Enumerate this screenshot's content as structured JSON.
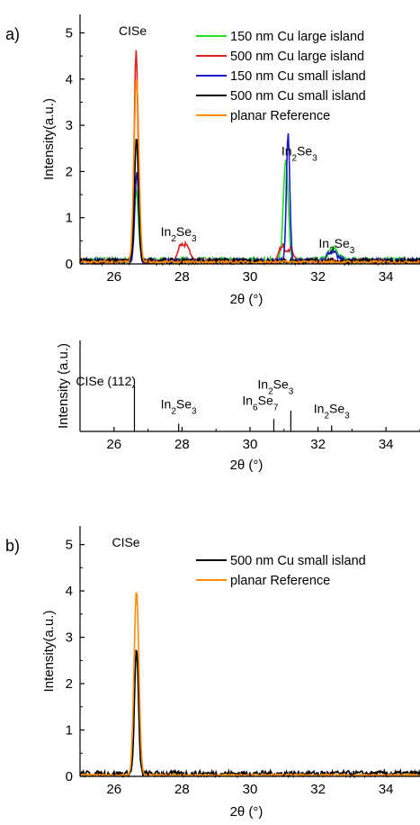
{
  "panels": {
    "a": "a)",
    "b": "b)"
  },
  "chart_data": [
    {
      "id": "a_main",
      "type": "line",
      "xlabel": "2θ (°)",
      "ylabel": "Intensity(a.u.)",
      "xlim": [
        25,
        35
      ],
      "ylim": [
        0,
        5.4
      ],
      "xticks": [
        "26",
        "28",
        "30",
        "32",
        "34"
      ],
      "yticks": [
        "0",
        "1",
        "2",
        "3",
        "4",
        "5"
      ],
      "legend_position": "top-right",
      "annotations": [
        {
          "text": "CISe",
          "x": 26.55,
          "y": 4.95
        },
        {
          "text": "In",
          "sub": "2",
          "text2": "Se",
          "sub2": "3",
          "x": 31.45,
          "y": 2.35
        },
        {
          "text": "In",
          "sub": "2",
          "text2": "Se",
          "sub2": "3",
          "x": 27.9,
          "y": 0.6
        },
        {
          "text": "In",
          "sub": "2",
          "text2": "Se",
          "sub2": "3",
          "x": 32.55,
          "y": 0.35
        }
      ],
      "series": [
        {
          "name": "150 nm Cu large island",
          "color": "#22dd22",
          "peaks": [
            {
              "x": 26.65,
              "h": 1.5,
              "w": 0.09
            },
            {
              "x": 31.05,
              "h": 2.2,
              "w": 0.1
            },
            {
              "x": 32.45,
              "h": 0.25,
              "w": 0.2
            }
          ],
          "baseline": 0.08,
          "noise": 0.06
        },
        {
          "name": "500 nm Cu large island",
          "color": "#e02020",
          "peaks": [
            {
              "x": 26.65,
              "h": 4.55,
              "w": 0.08
            },
            {
              "x": 27.95,
              "h": 0.35,
              "w": 0.12
            },
            {
              "x": 28.15,
              "h": 0.35,
              "w": 0.12
            },
            {
              "x": 30.95,
              "h": 0.35,
              "w": 0.12
            },
            {
              "x": 31.2,
              "h": 0.3,
              "w": 0.1
            }
          ],
          "baseline": 0.06,
          "noise": 0.05
        },
        {
          "name": "150 nm Cu small island",
          "color": "#1a1acc",
          "peaks": [
            {
              "x": 26.67,
              "h": 1.9,
              "w": 0.08
            },
            {
              "x": 31.12,
              "h": 2.75,
              "w": 0.07
            },
            {
              "x": 32.4,
              "h": 0.2,
              "w": 0.2
            }
          ],
          "baseline": 0.07,
          "noise": 0.05
        },
        {
          "name": "500 nm Cu small island",
          "color": "#000000",
          "peaks": [
            {
              "x": 26.66,
              "h": 2.7,
              "w": 0.08
            }
          ],
          "baseline": 0.06,
          "noise": 0.06
        },
        {
          "name": "planar Reference",
          "color": "#ff8c00",
          "peaks": [
            {
              "x": 26.66,
              "h": 4.0,
              "w": 0.1
            }
          ],
          "baseline": 0.04,
          "noise": 0.03
        }
      ]
    },
    {
      "id": "a_reference",
      "type": "bar",
      "xlabel": "2θ (°)",
      "ylabel": "Intensity (a.u.)",
      "xlim": [
        25,
        35
      ],
      "xticks": [
        "26",
        "28",
        "30",
        "32",
        "34"
      ],
      "lines": [
        {
          "x": 26.6,
          "h": 1.0
        },
        {
          "x": 27.9,
          "h": 0.17
        },
        {
          "x": 30.7,
          "h": 0.27
        },
        {
          "x": 31.2,
          "h": 0.45
        },
        {
          "x": 32.4,
          "h": 0.13
        }
      ],
      "annotations": [
        {
          "text": "CISe (112)",
          "x": 26.2,
          "y": 1.0
        },
        {
          "text": "In",
          "sub": "2",
          "text2": "Se",
          "sub2": "3",
          "x": 27.9,
          "y": 0.5
        },
        {
          "text": "In",
          "sub": "6",
          "text2": "Se",
          "sub2": "7",
          "x": 30.3,
          "y": 0.58
        },
        {
          "text": "In",
          "sub": "2",
          "text2": "Se",
          "sub2": "3",
          "x": 30.75,
          "y": 0.93
        },
        {
          "text": "In",
          "sub": "2",
          "text2": "Se",
          "sub2": "3",
          "x": 32.4,
          "y": 0.4
        }
      ]
    },
    {
      "id": "b_main",
      "type": "line",
      "xlabel": "2θ (°)",
      "ylabel": "Intensity(a.u.)",
      "xlim": [
        25,
        35
      ],
      "ylim": [
        0,
        5.4
      ],
      "xticks": [
        "26",
        "28",
        "30",
        "32",
        "34"
      ],
      "yticks": [
        "0",
        "1",
        "2",
        "3",
        "4",
        "5"
      ],
      "legend_position": "top-right",
      "annotations": [
        {
          "text": "CISe",
          "x": 26.35,
          "y": 4.95
        }
      ],
      "series": [
        {
          "name": "500 nm Cu small island",
          "color": "#000000",
          "peaks": [
            {
              "x": 26.66,
              "h": 2.7,
              "w": 0.08
            }
          ],
          "baseline": 0.06,
          "noise": 0.06
        },
        {
          "name": "planar Reference",
          "color": "#ff8c00",
          "peaks": [
            {
              "x": 26.66,
              "h": 3.98,
              "w": 0.1
            }
          ],
          "baseline": 0.03,
          "noise": 0.02
        }
      ]
    }
  ]
}
